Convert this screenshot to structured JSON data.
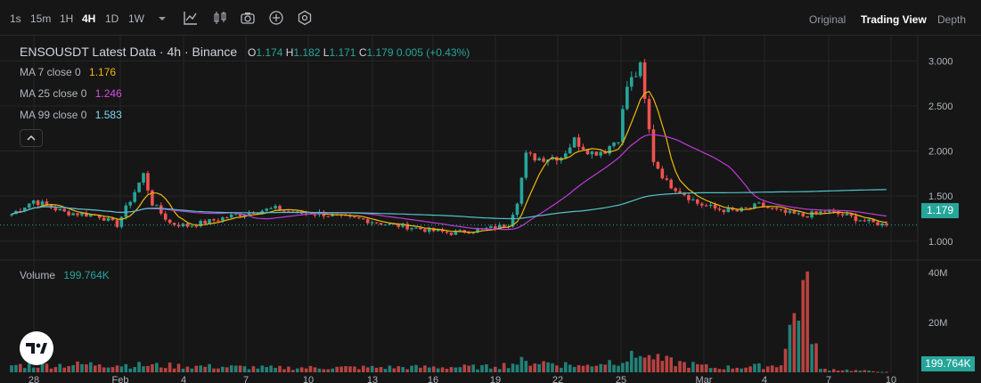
{
  "toolbar": {
    "timeframes": [
      "1s",
      "15m",
      "1H",
      "4H",
      "1D",
      "1W"
    ],
    "active_timeframe": "4H",
    "views": [
      "Original",
      "Trading View",
      "Depth"
    ],
    "active_view": "Trading View"
  },
  "legend": {
    "symbol": "ENSOUSDT Latest Data",
    "interval": "4h",
    "exchange": "Binance",
    "open_label": "O",
    "open": "1.174",
    "high_label": "H",
    "high": "1.182",
    "low_label": "L",
    "low": "1.171",
    "close_label": "C",
    "close": "1.179",
    "change": "0.005 (+0.43%)",
    "ma7_label": "MA 7 close 0",
    "ma7_value": "1.176",
    "ma25_label": "MA 25 close 0",
    "ma25_value": "1.246",
    "ma99_label": "MA 99 close 0",
    "ma99_value": "1.583",
    "volume_label": "Volume",
    "volume_value": "199.764K"
  },
  "price_tag": "1.179",
  "volume_tag": "199.764K",
  "colors": {
    "background": "#161616",
    "up": "#26a69a",
    "down": "#ef5350",
    "ma7": "#f0b90b",
    "ma25": "#c03ad8",
    "ma99": "#4fc3c7",
    "grid": "#262626"
  },
  "chart_data": {
    "type": "candlestick",
    "title": "ENSOUSDT Latest Data · 4h · Binance",
    "price_axis": {
      "ticks": [
        1.0,
        1.5,
        2.0,
        2.5,
        3.0
      ],
      "tick_labels": [
        "1.000",
        "1.500",
        "2.000",
        "2.500",
        "3.000"
      ],
      "range": [
        0.8,
        3.28
      ]
    },
    "volume_axis": {
      "ticks": [
        20000000,
        40000000
      ],
      "tick_labels": [
        "20M",
        "40M"
      ],
      "range": [
        0,
        40000000
      ]
    },
    "x_tick_labels": [
      "28",
      "Feb",
      "4",
      "7",
      "10",
      "13",
      "16",
      "19",
      "22",
      "25",
      "Mar",
      "4",
      "7",
      "10"
    ],
    "close_anchors": [
      {
        "i": 0,
        "v": 1.3
      },
      {
        "i": 5,
        "v": 1.45
      },
      {
        "i": 12,
        "v": 1.32
      },
      {
        "i": 20,
        "v": 1.28
      },
      {
        "i": 24,
        "v": 1.18
      },
      {
        "i": 28,
        "v": 1.55
      },
      {
        "i": 30,
        "v": 1.74
      },
      {
        "i": 32,
        "v": 1.42
      },
      {
        "i": 36,
        "v": 1.2
      },
      {
        "i": 40,
        "v": 1.17
      },
      {
        "i": 45,
        "v": 1.22
      },
      {
        "i": 50,
        "v": 1.28
      },
      {
        "i": 55,
        "v": 1.33
      },
      {
        "i": 60,
        "v": 1.36
      },
      {
        "i": 65,
        "v": 1.31
      },
      {
        "i": 70,
        "v": 1.31
      },
      {
        "i": 75,
        "v": 1.26
      },
      {
        "i": 80,
        "v": 1.24
      },
      {
        "i": 85,
        "v": 1.19
      },
      {
        "i": 90,
        "v": 1.16
      },
      {
        "i": 95,
        "v": 1.12
      },
      {
        "i": 100,
        "v": 1.09
      },
      {
        "i": 105,
        "v": 1.12
      },
      {
        "i": 110,
        "v": 1.15
      },
      {
        "i": 113,
        "v": 1.19
      },
      {
        "i": 115,
        "v": 1.45
      },
      {
        "i": 117,
        "v": 1.95
      },
      {
        "i": 120,
        "v": 1.92
      },
      {
        "i": 125,
        "v": 1.94
      },
      {
        "i": 128,
        "v": 2.12
      },
      {
        "i": 132,
        "v": 1.98
      },
      {
        "i": 135,
        "v": 2.01
      },
      {
        "i": 138,
        "v": 2.15
      },
      {
        "i": 140,
        "v": 2.72
      },
      {
        "i": 143,
        "v": 2.92
      },
      {
        "i": 144,
        "v": 2.55
      },
      {
        "i": 146,
        "v": 1.9
      },
      {
        "i": 149,
        "v": 1.65
      },
      {
        "i": 152,
        "v": 1.56
      },
      {
        "i": 156,
        "v": 1.42
      },
      {
        "i": 160,
        "v": 1.36
      },
      {
        "i": 165,
        "v": 1.33
      },
      {
        "i": 170,
        "v": 1.4
      },
      {
        "i": 175,
        "v": 1.32
      },
      {
        "i": 180,
        "v": 1.28
      },
      {
        "i": 185,
        "v": 1.33
      },
      {
        "i": 190,
        "v": 1.28
      },
      {
        "i": 195,
        "v": 1.21
      },
      {
        "i": 199,
        "v": 1.18
      }
    ],
    "candle_count": 200,
    "moving_averages": [
      {
        "name": "MA 7 close 0",
        "last": 1.176
      },
      {
        "name": "MA 25 close 0",
        "last": 1.246
      },
      {
        "name": "MA 99 close 0",
        "last": 1.583
      }
    ],
    "volume_anchors": [
      {
        "i": 0,
        "v": 2800000
      },
      {
        "i": 20,
        "v": 3200000
      },
      {
        "i": 60,
        "v": 1800000
      },
      {
        "i": 110,
        "v": 2200000
      },
      {
        "i": 117,
        "v": 4600000
      },
      {
        "i": 130,
        "v": 2600000
      },
      {
        "i": 143,
        "v": 6500000
      },
      {
        "i": 146,
        "v": 5200000
      },
      {
        "i": 160,
        "v": 1800000
      },
      {
        "i": 175,
        "v": 2800000
      },
      {
        "i": 180,
        "v": 37000000
      },
      {
        "i": 184,
        "v": 1400000
      },
      {
        "i": 199,
        "v": 200000
      }
    ],
    "last_close": 1.179,
    "last_volume": "199.764K"
  }
}
